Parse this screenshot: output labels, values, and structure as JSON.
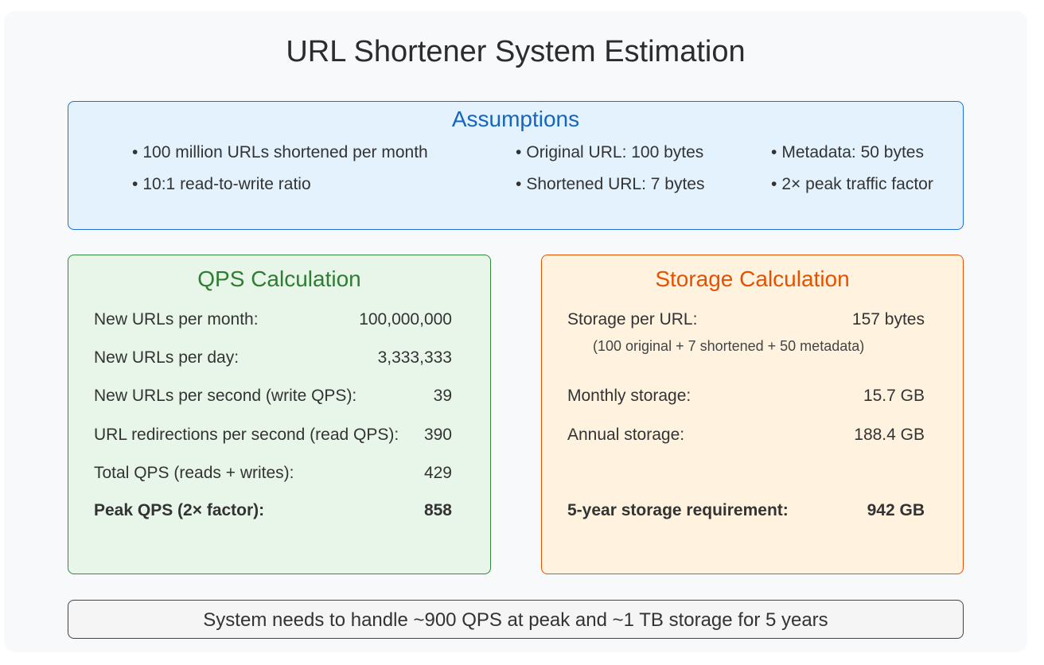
{
  "title": "URL Shortener System Estimation",
  "assumptions": {
    "title": "Assumptions",
    "items": [
      "100 million URLs shortened per month",
      "Original URL: 100 bytes",
      "Metadata: 50 bytes",
      "10:1 read-to-write ratio",
      "Shortened URL: 7 bytes",
      "2× peak traffic factor"
    ]
  },
  "qps": {
    "title": "QPS Calculation",
    "rows": [
      {
        "label": "New URLs per month:",
        "value": "100,000,000"
      },
      {
        "label": "New URLs per day:",
        "value": "3,333,333"
      },
      {
        "label": "New URLs per second (write QPS):",
        "value": "39"
      },
      {
        "label": "URL redirections per second (read QPS):",
        "value": "390"
      },
      {
        "label": "Total QPS (reads + writes):",
        "value": "429"
      },
      {
        "label": "Peak QPS (2× factor):",
        "value": "858"
      }
    ]
  },
  "storage": {
    "title": "Storage Calculation",
    "rows": [
      {
        "label": "Storage per URL:",
        "value": "157 bytes"
      },
      {
        "label": "Monthly storage:",
        "value": "15.7 GB"
      },
      {
        "label": "Annual storage:",
        "value": "188.4 GB"
      },
      {
        "label": "5-year storage requirement:",
        "value": "942 GB"
      }
    ],
    "note": "(100 original + 7 shortened + 50 metadata)"
  },
  "summary": "System needs to handle ~900 QPS at peak and ~1 TB storage for 5 years",
  "colors": {
    "assumptions_fill": "#e3f2fd",
    "assumptions_accent": "#1565c0",
    "qps_fill": "#e8f5e9",
    "qps_accent": "#2e7d32",
    "storage_fill": "#fff3e0",
    "storage_accent": "#e65100"
  }
}
